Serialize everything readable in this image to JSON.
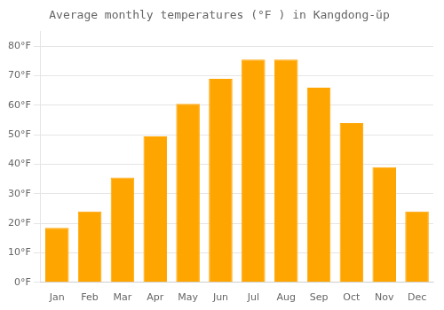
{
  "chart_data": {
    "type": "bar",
    "title": "Average monthly temperatures (°F ) in Kangdong-ŭp",
    "categories": [
      "Jan",
      "Feb",
      "Mar",
      "Apr",
      "May",
      "Jun",
      "Jul",
      "Aug",
      "Sep",
      "Oct",
      "Nov",
      "Dec"
    ],
    "values": [
      18.5,
      24,
      35.5,
      49.5,
      60.5,
      69,
      75.5,
      75.5,
      66,
      54,
      39,
      24
    ],
    "color": "#FFA500",
    "ylim": [
      0,
      85
    ],
    "yticks": [
      {
        "value": 0,
        "label": "0°F"
      },
      {
        "value": 10,
        "label": "10°F"
      },
      {
        "value": 20,
        "label": "20°F"
      },
      {
        "value": 30,
        "label": "30°F"
      },
      {
        "value": 40,
        "label": "40°F"
      },
      {
        "value": 50,
        "label": "50°F"
      },
      {
        "value": 60,
        "label": "60°F"
      },
      {
        "value": 70,
        "label": "70°F"
      },
      {
        "value": 80,
        "label": "80°F"
      }
    ],
    "grid": true
  }
}
